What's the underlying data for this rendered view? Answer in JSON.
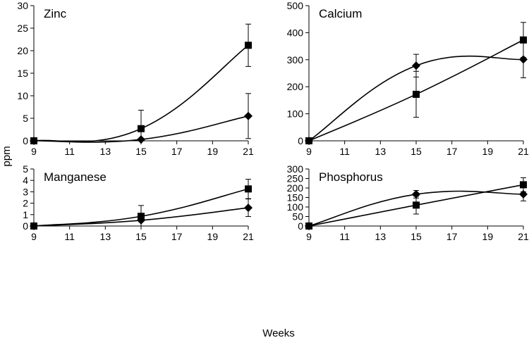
{
  "figure": {
    "xlabel": "Weeks",
    "ylabel": "ppm"
  },
  "chart_data": [
    {
      "type": "line",
      "title": "Zinc",
      "xlim": [
        9,
        21
      ],
      "xticks": [
        "9",
        "11",
        "13",
        "15",
        "17",
        "19",
        "21"
      ],
      "ylim": [
        0,
        30
      ],
      "yticks": [
        "0",
        "5",
        "10",
        "15",
        "20",
        "25",
        "30"
      ],
      "series": [
        {
          "marker": "square",
          "x": [
            9,
            15,
            21
          ],
          "values": [
            0,
            2.7,
            21.2
          ],
          "error": [
            0,
            4.1,
            4.7
          ]
        },
        {
          "marker": "diamond",
          "x": [
            9,
            15,
            21
          ],
          "values": [
            0,
            0.3,
            5.5
          ],
          "error": [
            0,
            0,
            5.0
          ]
        }
      ]
    },
    {
      "type": "line",
      "title": "Calcium",
      "xlim": [
        9,
        21
      ],
      "xticks": [
        "9",
        "11",
        "13",
        "15",
        "17",
        "19",
        "21"
      ],
      "ylim": [
        0,
        500
      ],
      "yticks": [
        "0",
        "100",
        "200",
        "300",
        "400",
        "500"
      ],
      "series": [
        {
          "marker": "square",
          "x": [
            9,
            15,
            21
          ],
          "values": [
            0,
            172,
            373
          ],
          "error": [
            0,
            85,
            65
          ]
        },
        {
          "marker": "diamond",
          "x": [
            9,
            15,
            21
          ],
          "values": [
            0,
            278,
            301
          ],
          "error": [
            0,
            42,
            68
          ]
        }
      ]
    },
    {
      "type": "line",
      "title": "Manganese",
      "xlim": [
        9,
        21
      ],
      "xticks": [
        "9",
        "11",
        "13",
        "15",
        "17",
        "19",
        "21"
      ],
      "ylim": [
        0,
        5
      ],
      "yticks": [
        "0",
        "1",
        "2",
        "3",
        "4",
        "5"
      ],
      "series": [
        {
          "marker": "square",
          "x": [
            9,
            15,
            21
          ],
          "values": [
            0,
            0.85,
            3.25
          ],
          "error": [
            0,
            0.95,
            0.85
          ]
        },
        {
          "marker": "diamond",
          "x": [
            9,
            15,
            21
          ],
          "values": [
            0,
            0.5,
            1.6
          ],
          "error": [
            0,
            0,
            0.77
          ]
        }
      ]
    },
    {
      "type": "line",
      "title": "Phosphorus",
      "xlim": [
        9,
        21
      ],
      "xticks": [
        "9",
        "11",
        "13",
        "15",
        "17",
        "19",
        "21"
      ],
      "ylim": [
        0,
        300
      ],
      "yticks": [
        "0",
        "50",
        "100",
        "150",
        "200",
        "250",
        "300"
      ],
      "series": [
        {
          "marker": "square",
          "x": [
            9,
            15,
            21
          ],
          "values": [
            0,
            110,
            217
          ],
          "error": [
            0,
            47,
            37
          ]
        },
        {
          "marker": "diamond",
          "x": [
            9,
            15,
            21
          ],
          "values": [
            0,
            167,
            167
          ],
          "error": [
            0,
            20,
            35
          ]
        }
      ]
    }
  ]
}
